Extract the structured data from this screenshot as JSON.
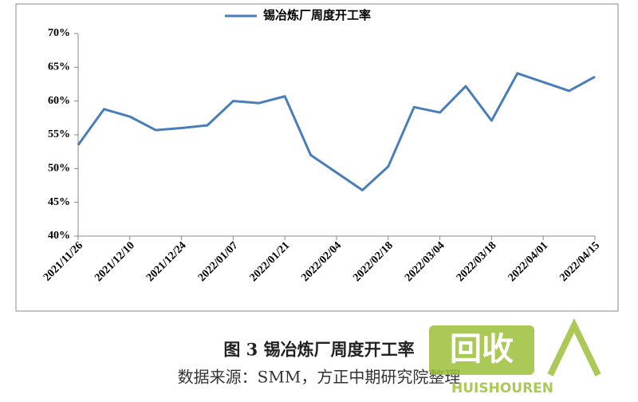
{
  "chart_data": {
    "type": "line",
    "categories": [
      "2021/11/26",
      null,
      "2021/12/10",
      null,
      "2021/12/24",
      null,
      "2022/01/07",
      null,
      "2022/01/21",
      null,
      "2022/02/04",
      null,
      "2022/02/18",
      null,
      "2022/03/04",
      null,
      "2022/03/18",
      null,
      "2022/04/01",
      null,
      "2022/04/15"
    ],
    "series": [
      {
        "name": "锡冶炼厂周度开工率",
        "color": "#4a7ebb",
        "values": [
          53.5,
          58.8,
          57.7,
          55.7,
          56.0,
          56.4,
          60.0,
          59.7,
          60.7,
          52.0,
          49.4,
          46.8,
          50.3,
          59.1,
          58.3,
          62.2,
          57.1,
          64.1,
          62.8,
          61.5,
          63.6
        ]
      }
    ],
    "ylim": [
      40,
      70
    ],
    "yticks": [
      {
        "value": 40,
        "label": "40%"
      },
      {
        "value": 45,
        "label": "45%"
      },
      {
        "value": 50,
        "label": "50%"
      },
      {
        "value": 55,
        "label": "55%"
      },
      {
        "value": 60,
        "label": "60%"
      },
      {
        "value": 65,
        "label": "65%"
      },
      {
        "value": 70,
        "label": "70%"
      }
    ],
    "legend": "top",
    "caption": "图 3 锡冶炼厂周度开工率",
    "source": "数据来源：SMM，方正中期研究院整理",
    "watermark": [
      "回收",
      "HUISHOUREN"
    ]
  }
}
